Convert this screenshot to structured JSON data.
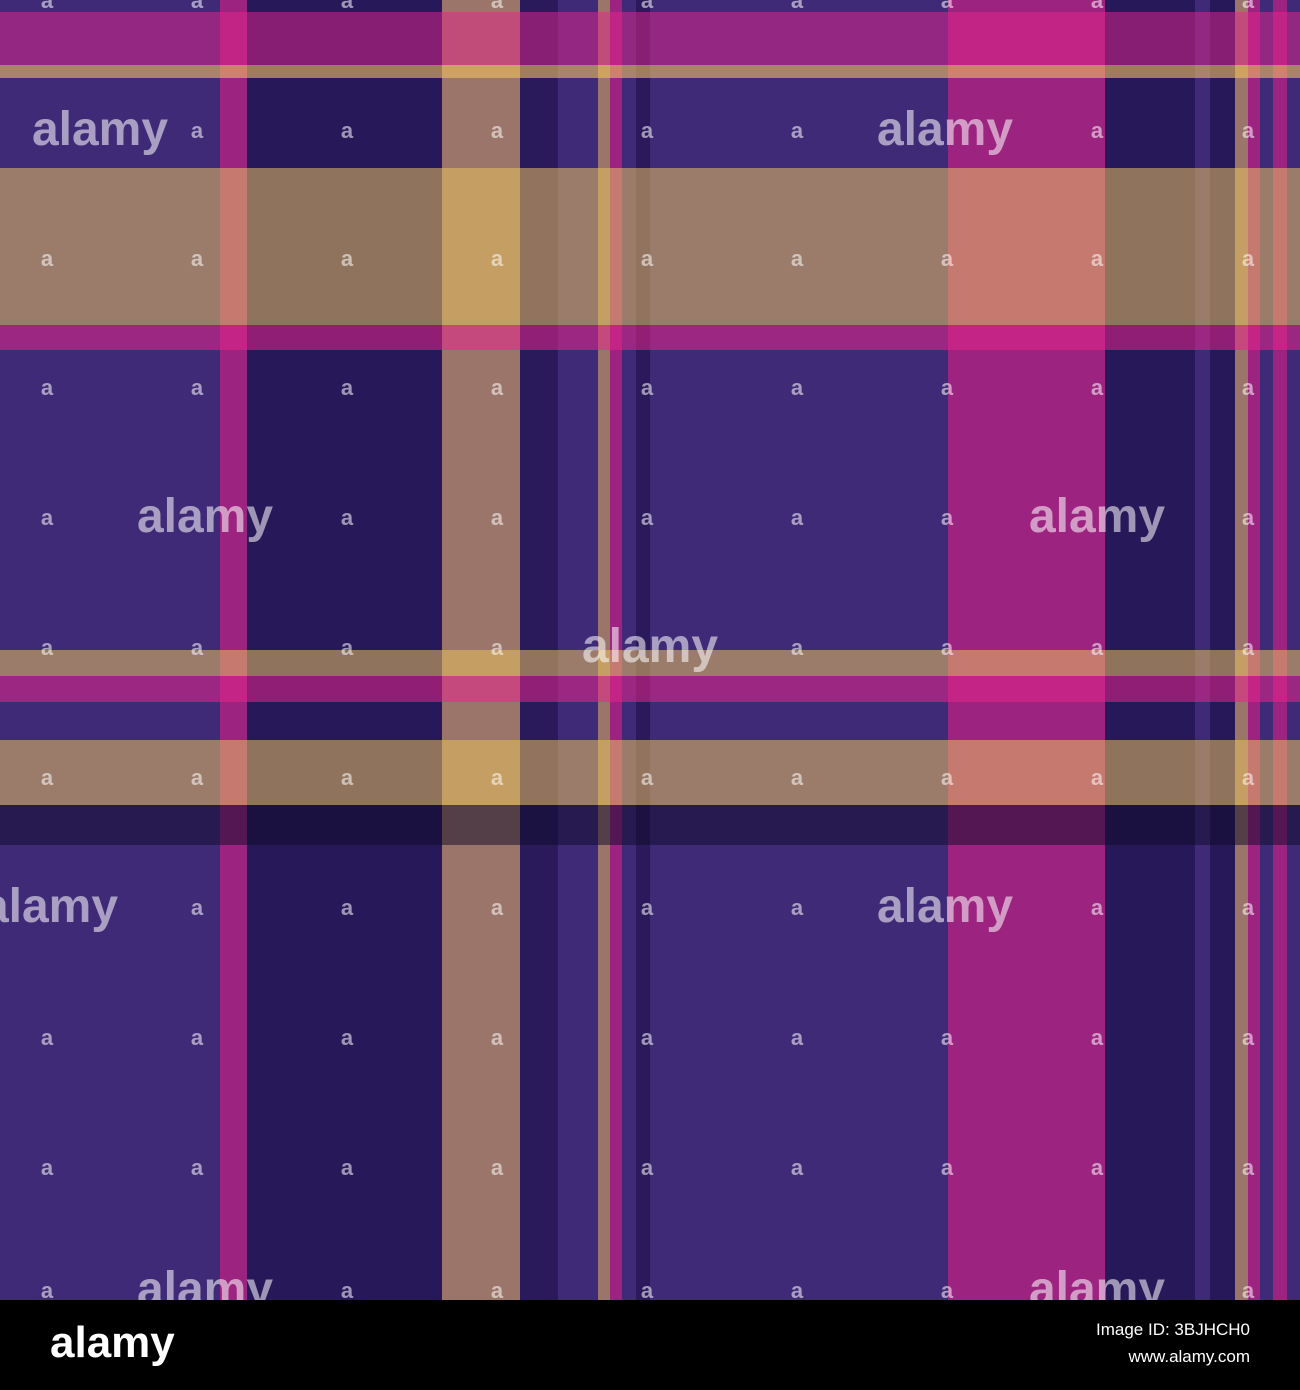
{
  "watermark": "alamy",
  "watermark_small": "a",
  "footer": {
    "logo": "alamy",
    "image_id": "Image ID: 3BJHCH0",
    "url": "www.alamy.com"
  }
}
